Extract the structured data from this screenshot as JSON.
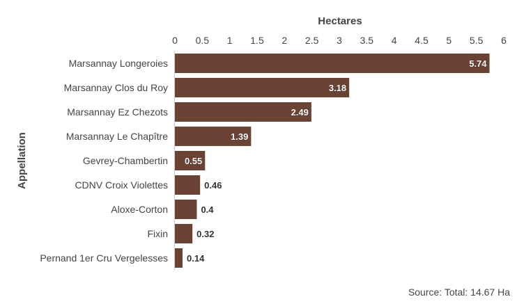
{
  "chart_data": {
    "type": "bar",
    "orientation": "horizontal",
    "categories": [
      "Marsannay Longeroies",
      "Marsannay Clos du Roy",
      "Marsannay Ez Chezots",
      "Marsannay Le Chapître",
      "Gevrey-Chambertin",
      "CDNV Croix Violettes",
      "Aloxe-Corton",
      "Fixin",
      "Pernand 1er Cru Vergelesses"
    ],
    "values": [
      5.74,
      3.18,
      2.49,
      1.39,
      0.55,
      0.46,
      0.4,
      0.32,
      0.14
    ],
    "data_labels": [
      "5.74",
      "3.18",
      "2.49",
      "1.39",
      "0.55",
      "0.46",
      "0.4",
      "0.32",
      "0.14"
    ],
    "xlabel": "Hectares",
    "ylabel": "Appellation",
    "x_axis_position": "top",
    "xlim": [
      0,
      6
    ],
    "xticks": [
      0,
      0.5,
      1,
      1.5,
      2,
      2.5,
      3,
      3.5,
      4,
      4.5,
      5,
      5.5,
      6
    ],
    "xtick_labels": [
      "0",
      "0.5",
      "1",
      "1.5",
      "2",
      "2.5",
      "3",
      "3.5",
      "4",
      "4.5",
      "5",
      "5.5",
      "6"
    ],
    "grid": false,
    "bar_color": "#6b4334",
    "label_inside_color": "#ffffff",
    "label_outside_color": "#333333"
  },
  "footer": {
    "source": "Source: Total: 14.67 Ha"
  }
}
